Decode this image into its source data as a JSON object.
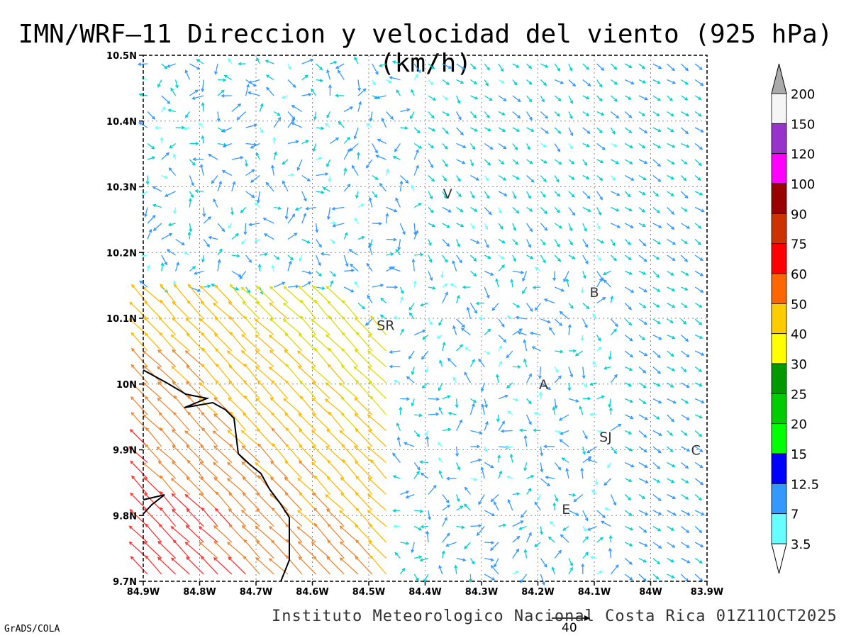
{
  "title": "IMN/WRF–11 Direccion y velocidad del viento (925 hPa)(km/h)",
  "footer": "Instituto Meteorologico Nacional Costa Rica 01Z11OCT2025",
  "credit": "GrADS/COLA",
  "reference_vector": {
    "value": "40"
  },
  "map": {
    "lon_range": [
      -84.9,
      -83.9
    ],
    "lat_range": [
      9.7,
      10.5
    ],
    "grid": "dotted",
    "x_ticks": [
      "84.9W",
      "84.8W",
      "84.7W",
      "84.6W",
      "84.5W",
      "84.4W",
      "84.3W",
      "84.2W",
      "84.1W",
      "84W",
      "83.9W"
    ],
    "y_ticks": [
      "10.5N",
      "10.4N",
      "10.3N",
      "10.2N",
      "10.1N",
      "10N",
      "9.9N",
      "9.8N",
      "9.7N"
    ],
    "places": [
      {
        "label": "V",
        "lon": -84.36,
        "lat": 10.29
      },
      {
        "label": "B",
        "lon": -84.1,
        "lat": 10.14
      },
      {
        "label": "SR",
        "lon": -84.47,
        "lat": 10.09
      },
      {
        "label": "A",
        "lon": -84.19,
        "lat": 10.0
      },
      {
        "label": "SJ",
        "lon": -84.08,
        "lat": 9.92
      },
      {
        "label": "C",
        "lon": -83.92,
        "lat": 9.9
      },
      {
        "label": "E",
        "lon": -84.15,
        "lat": 9.81
      }
    ]
  },
  "colorbar": {
    "labels": [
      "200",
      "150",
      "120",
      "100",
      "90",
      "75",
      "60",
      "50",
      "40",
      "30",
      "25",
      "20",
      "15",
      "12.5",
      "7",
      "3.5"
    ],
    "colors": [
      "#f5f5f5",
      "#9932cc",
      "#ff00ff",
      "#990000",
      "#cc3300",
      "#ff0000",
      "#ff6600",
      "#ffcc00",
      "#ffff00",
      "#009900",
      "#00cc00",
      "#00ff00",
      "#0000ff",
      "#3399ff",
      "#66ffff"
    ],
    "top_arrow_color": "#aaaaaa",
    "bottom_arrow_color": "#ffffff"
  }
}
